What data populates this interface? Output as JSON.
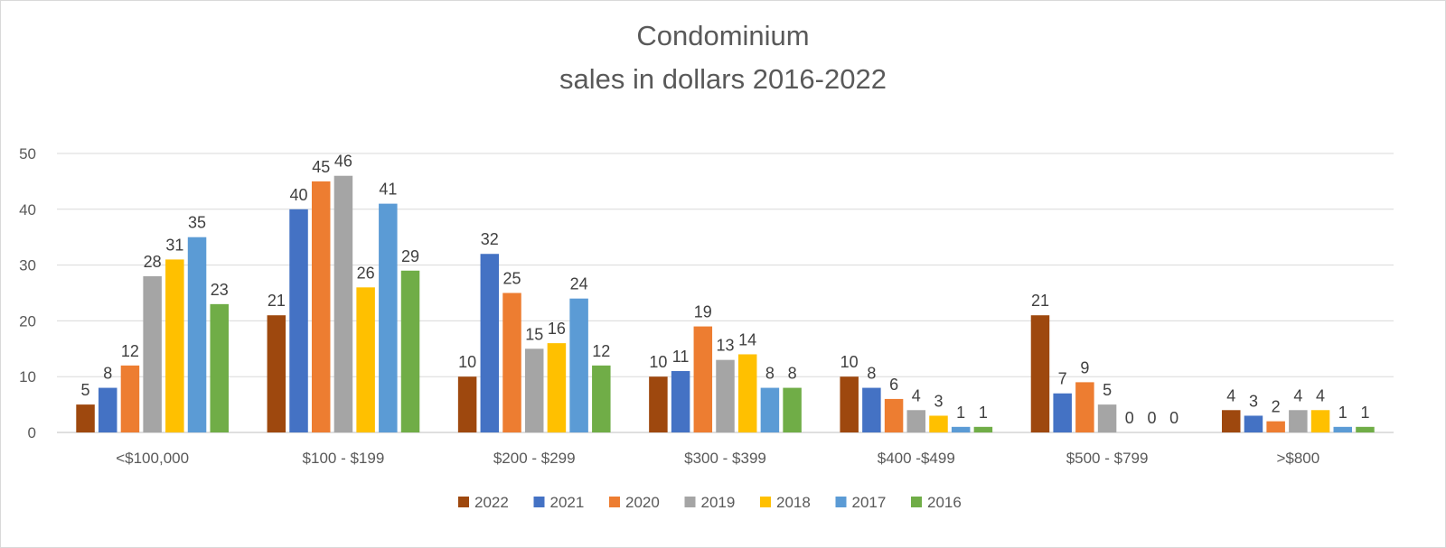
{
  "chart_data": {
    "type": "bar",
    "title_lines": [
      "Condominium",
      "sales in dollars 2016-2022"
    ],
    "xlabel": "",
    "ylabel": "",
    "ylim": [
      0,
      50
    ],
    "yticks": [
      0,
      10,
      20,
      30,
      40,
      50
    ],
    "grid": true,
    "legend_position": "bottom",
    "categories": [
      "<$100,000",
      "$100 - $199",
      "$200 - $299",
      "$300 - $399",
      "$400 -$499",
      "$500 - $799",
      ">$800"
    ],
    "series": [
      {
        "name": "2022",
        "color": "#9E480E",
        "values": [
          5,
          21,
          10,
          10,
          10,
          21,
          4
        ]
      },
      {
        "name": "2021",
        "color": "#4472C4",
        "values": [
          8,
          40,
          32,
          11,
          8,
          7,
          3
        ]
      },
      {
        "name": "2020",
        "color": "#ED7D31",
        "values": [
          12,
          45,
          25,
          19,
          6,
          9,
          2
        ]
      },
      {
        "name": "2019",
        "color": "#A5A5A5",
        "values": [
          28,
          46,
          15,
          13,
          4,
          5,
          4
        ]
      },
      {
        "name": "2018",
        "color": "#FFC000",
        "values": [
          31,
          26,
          16,
          14,
          3,
          0,
          4
        ]
      },
      {
        "name": "2017",
        "color": "#5B9BD5",
        "values": [
          35,
          41,
          24,
          8,
          1,
          0,
          1
        ]
      },
      {
        "name": "2016",
        "color": "#70AD47",
        "values": [
          23,
          29,
          12,
          8,
          1,
          0,
          1
        ]
      }
    ]
  }
}
